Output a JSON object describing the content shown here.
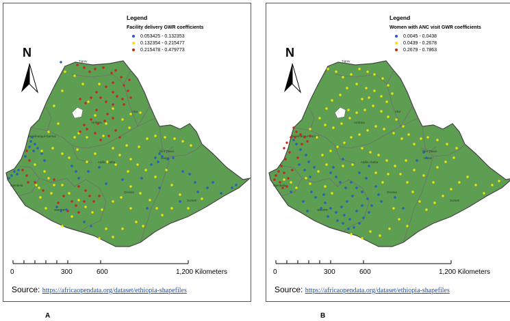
{
  "panels": [
    {
      "letter": "A",
      "legend_title": "Legend",
      "legend_subtitle": "Facility delivery GWR coefficients",
      "legend_items": [
        {
          "label": "0.053425 - 0.132353",
          "color": "#1f5fbf"
        },
        {
          "label": "0.132354 - 0.215477",
          "color": "#f2e600"
        },
        {
          "label": "0.215478 - 0.479773",
          "color": "#c8241e"
        }
      ]
    },
    {
      "letter": "B",
      "legend_title": "Legend",
      "legend_subtitle": "Women with ANC visit GWR coefficients",
      "legend_items": [
        {
          "label": "0.0045 - 0.0438",
          "color": "#1f5fbf"
        },
        {
          "label": "0.0439 - 0.2678",
          "color": "#f2e600"
        },
        {
          "label": "0.2679 - 0.7863",
          "color": "#c8241e"
        }
      ]
    }
  ],
  "north_label": "N",
  "scale_ticks": [
    "0",
    "300",
    "600",
    "1,200 Kilometers"
  ],
  "source_prefix": "Source:",
  "source_url": "https://africaopendata.org/dataset/ethiopia-shapefiles",
  "region_labels": [
    "Tigray",
    "Afar",
    "Amhara",
    "Benishangul-Gumuz",
    "Addis Ababa",
    "Dire Dawa",
    "Harari",
    "Oromia",
    "Gambela",
    "SNNPR",
    "Somali"
  ],
  "colors": {
    "land": "#5e9e52",
    "border": "#6e6e6e",
    "outline": "#444444"
  }
}
